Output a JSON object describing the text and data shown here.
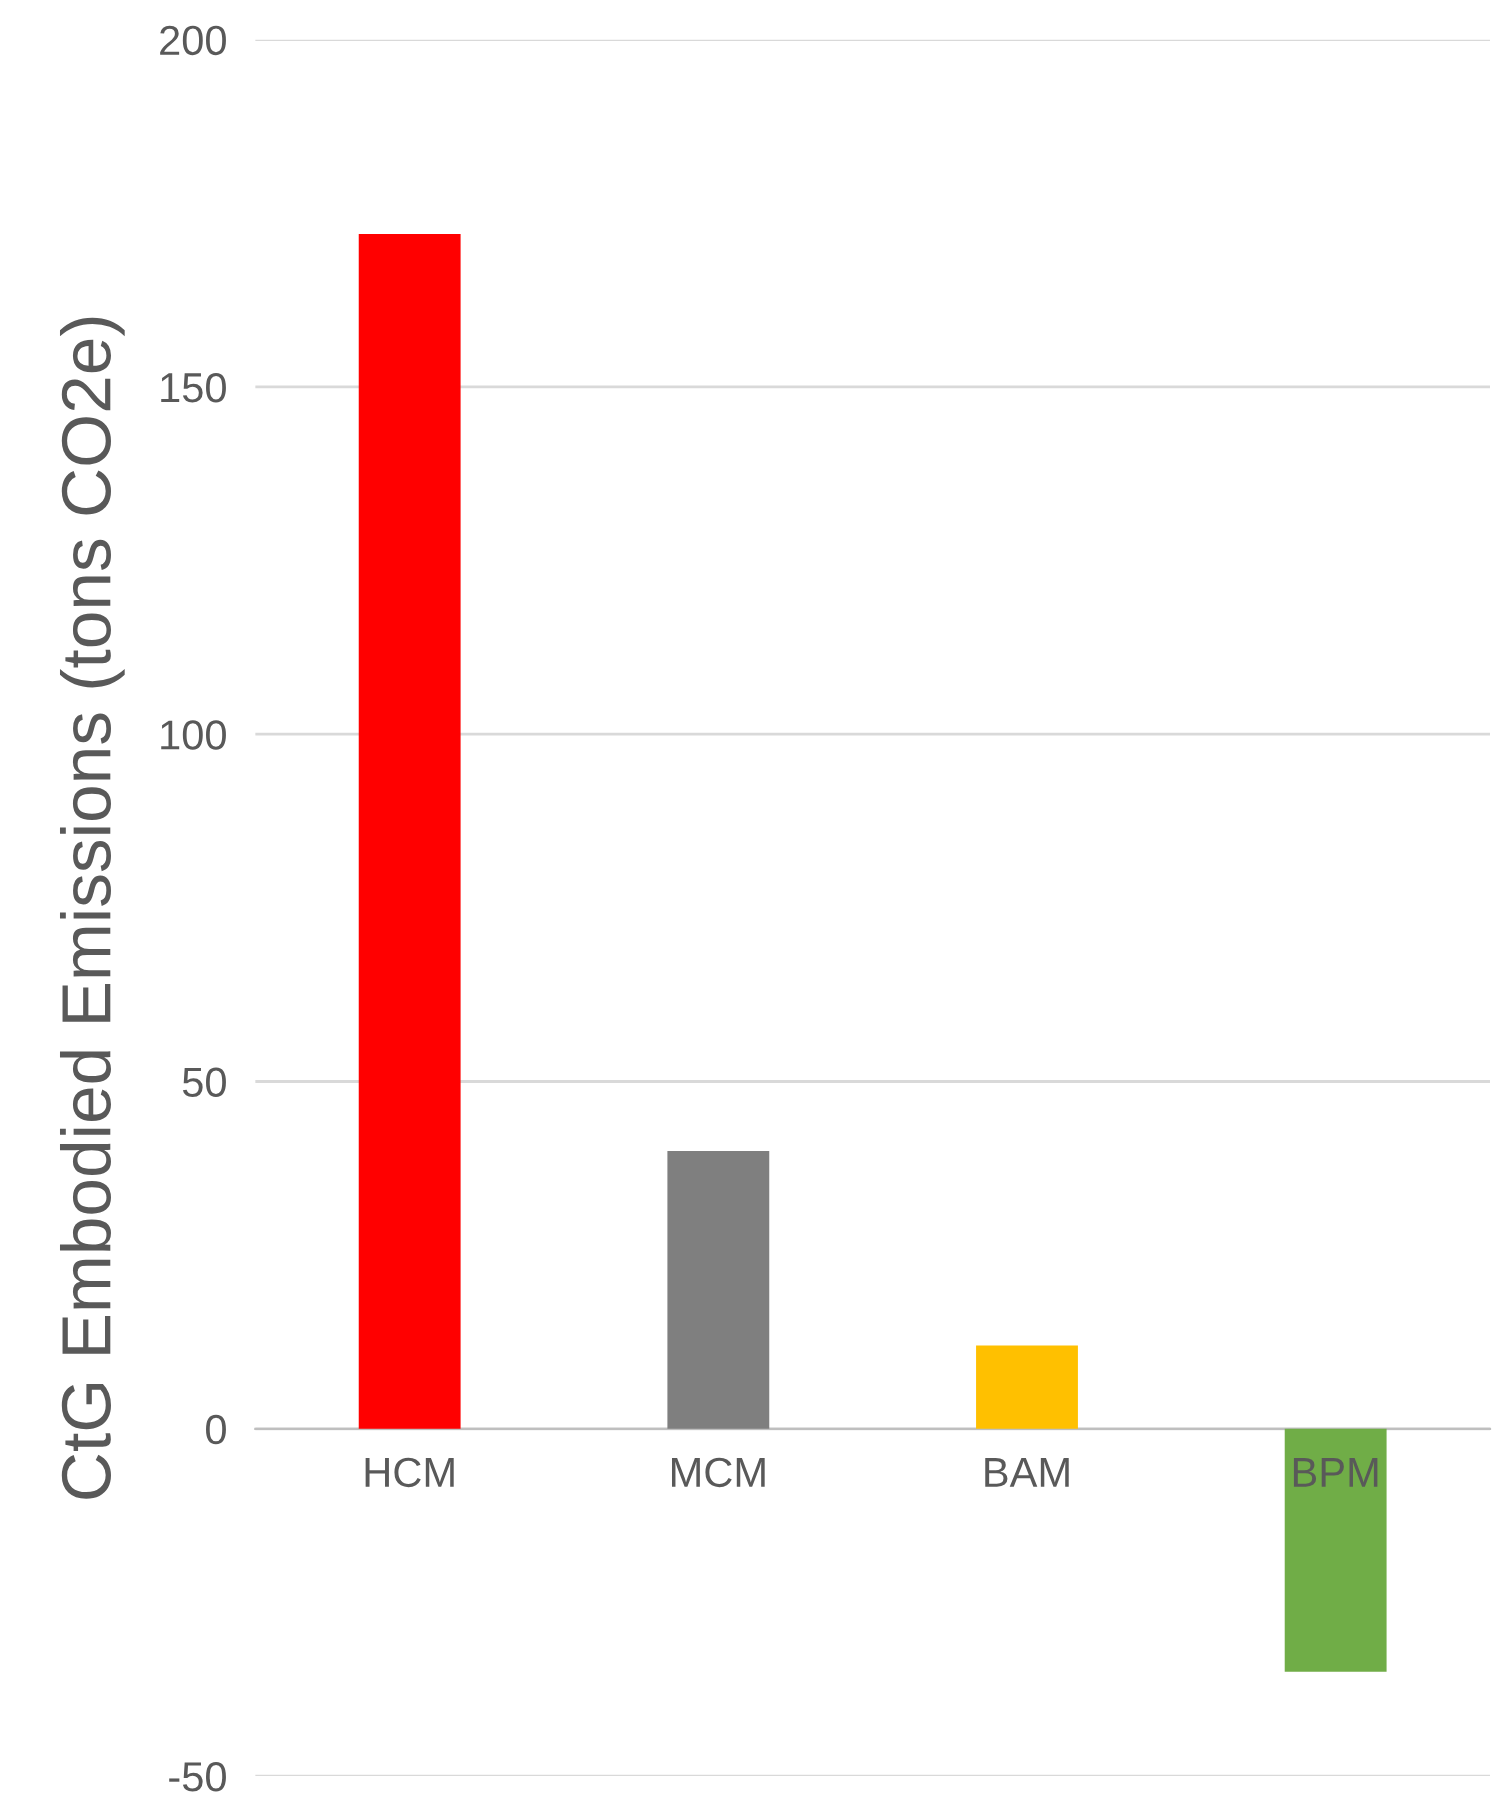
{
  "chart_data": {
    "type": "bar",
    "ylabel": "CtG Embodied Emissions (tons CO2e)",
    "categories": [
      "HCM",
      "MCM",
      "BAM",
      "BPM"
    ],
    "values": [
      172,
      40,
      12,
      -35
    ],
    "colors": [
      "#ff0000",
      "#7f7f7f",
      "#ffc000",
      "#70ad47"
    ],
    "ylim": [
      -50,
      200
    ],
    "yticks": [
      -50,
      0,
      50,
      100,
      150,
      200
    ],
    "grid": "y",
    "legend": false
  }
}
